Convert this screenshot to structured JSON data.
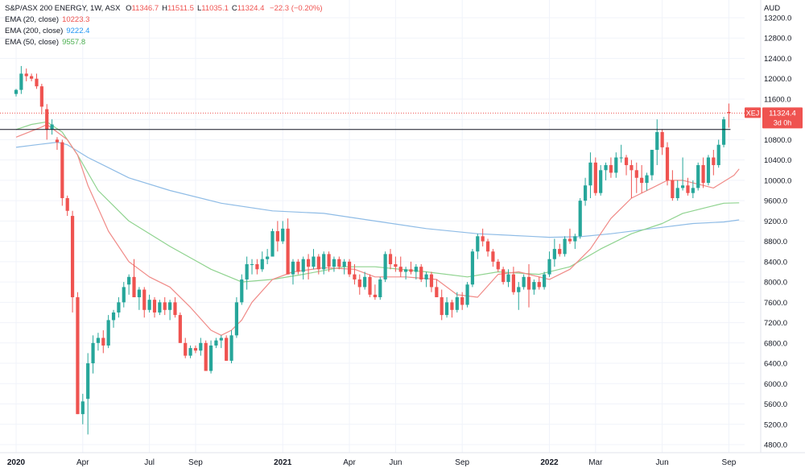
{
  "header": {
    "symbol_line": "S&P/ASX 200 ENERGY, 1W, ASX",
    "ohlc": [
      {
        "label": "O",
        "value": "11346.7"
      },
      {
        "label": "H",
        "value": "11511.5"
      },
      {
        "label": "L",
        "value": "11035.1"
      },
      {
        "label": "C",
        "value": "11324.4"
      }
    ],
    "change": "−22.3 (−0.20%)",
    "indicators": [
      {
        "label": "EMA (20, close)",
        "value": "10223.3",
        "color": "#ef5350"
      },
      {
        "label": "EMA (200, close)",
        "value": "9222.4",
        "color": "#2196f3"
      },
      {
        "label": "EMA (50, close)",
        "value": "9557.8",
        "color": "#4caf50"
      }
    ]
  },
  "colors": {
    "up": "#26a69a",
    "down": "#ef5350",
    "ema20": "#f08a87",
    "ema200": "#8fbce6",
    "ema50": "#8fd38f",
    "hline": "#131722",
    "price_line": "#ef5350"
  },
  "price_axis": {
    "currency": "AUD",
    "ticks": [
      "4800.0",
      "5200.0",
      "5600.0",
      "6000.0",
      "6400.0",
      "6800.0",
      "7200.0",
      "7600.0",
      "8000.0",
      "8400.0",
      "8800.0",
      "9200.0",
      "9600.0",
      "10000.0",
      "10400.0",
      "10800.0",
      "11200.0",
      "11600.0",
      "12000.0",
      "12400.0",
      "12800.0",
      "13200.0"
    ]
  },
  "time_axis": {
    "labels": [
      {
        "text": "2020",
        "bold": true,
        "week": 0
      },
      {
        "text": "Apr",
        "bold": false,
        "week": 13
      },
      {
        "text": "Jul",
        "bold": false,
        "week": 26
      },
      {
        "text": "Sep",
        "bold": false,
        "week": 35
      },
      {
        "text": "2021",
        "bold": true,
        "week": 52
      },
      {
        "text": "Apr",
        "bold": false,
        "week": 65
      },
      {
        "text": "Jun",
        "bold": false,
        "week": 74
      },
      {
        "text": "Sep",
        "bold": false,
        "week": 87
      },
      {
        "text": "2022",
        "bold": true,
        "week": 104
      },
      {
        "text": "Mar",
        "bold": false,
        "week": 113
      },
      {
        "text": "Jun",
        "bold": false,
        "week": 126
      },
      {
        "text": "Sep",
        "bold": false,
        "week": 139
      }
    ]
  },
  "badge": {
    "ticker": "XEJ",
    "price": "11324.4",
    "countdown": "3d 0h"
  },
  "chart_data": {
    "type": "candlestick",
    "title": "S&P/ASX 200 ENERGY, 1W, ASX",
    "ylabel": "AUD",
    "ylim": [
      4600,
      13300
    ],
    "xlim_weeks": [
      -3,
      143.5
    ],
    "start_date": "2019-12-30",
    "interval": "1W",
    "resistance_level": 11000,
    "last_price": 11324.4,
    "candles": [
      [
        11700,
        11800,
        11650,
        11780
      ],
      [
        11780,
        12250,
        11700,
        12100
      ],
      [
        12100,
        12200,
        11950,
        12050
      ],
      [
        12050,
        12100,
        11950,
        12000
      ],
      [
        12000,
        12100,
        11800,
        11850
      ],
      [
        11850,
        11900,
        11300,
        11450
      ],
      [
        11400,
        11500,
        10800,
        11000
      ],
      [
        11000,
        11200,
        10900,
        11100
      ],
      [
        10800,
        10850,
        10600,
        10750
      ],
      [
        10750,
        10800,
        9500,
        9650
      ],
      [
        9650,
        9700,
        9300,
        9400
      ],
      [
        9300,
        9400,
        7400,
        7700
      ],
      [
        7700,
        7800,
        5400,
        5400
      ],
      [
        5400,
        5800,
        5200,
        5650
      ],
      [
        5700,
        6600,
        5000,
        6400
      ],
      [
        6400,
        6950,
        6200,
        6800
      ],
      [
        6800,
        7000,
        6650,
        6900
      ],
      [
        6900,
        7050,
        6600,
        6750
      ],
      [
        6750,
        7350,
        6700,
        7250
      ],
      [
        7250,
        7450,
        7100,
        7400
      ],
      [
        7400,
        7700,
        7300,
        7600
      ],
      [
        7600,
        8000,
        7500,
        7900
      ],
      [
        7950,
        8150,
        7750,
        8100
      ],
      [
        8100,
        8450,
        7700,
        7700
      ],
      [
        7700,
        7900,
        7450,
        7850
      ],
      [
        7850,
        7900,
        7300,
        7450
      ],
      [
        7450,
        7750,
        7400,
        7650
      ],
      [
        7650,
        7700,
        7300,
        7400
      ],
      [
        7400,
        7650,
        7350,
        7600
      ],
      [
        7600,
        7700,
        7350,
        7450
      ],
      [
        7450,
        7650,
        7250,
        7600
      ],
      [
        7600,
        7700,
        7300,
        7350
      ],
      [
        7350,
        7400,
        6800,
        6800
      ],
      [
        6800,
        6900,
        6500,
        6550
      ],
      [
        6550,
        6750,
        6500,
        6700
      ],
      [
        6700,
        6750,
        6600,
        6650
      ],
      [
        6650,
        6900,
        6550,
        6800
      ],
      [
        6800,
        6850,
        6250,
        6250
      ],
      [
        6250,
        6850,
        6200,
        6750
      ],
      [
        6750,
        6900,
        6700,
        6850
      ],
      [
        6850,
        6950,
        6700,
        6900
      ],
      [
        6900,
        6950,
        6450,
        6450
      ],
      [
        6450,
        7050,
        6400,
        6950
      ],
      [
        6950,
        7700,
        6900,
        7600
      ],
      [
        7600,
        8150,
        7550,
        8050
      ],
      [
        8050,
        8500,
        7850,
        8350
      ],
      [
        8350,
        8450,
        8150,
        8350
      ],
      [
        8350,
        8450,
        8150,
        8250
      ],
      [
        8250,
        8600,
        8200,
        8450
      ],
      [
        8450,
        8650,
        8350,
        8500
      ],
      [
        8500,
        9050,
        8500,
        9000
      ],
      [
        9000,
        9200,
        8600,
        8800
      ],
      [
        8800,
        9200,
        8750,
        9050
      ],
      [
        9050,
        9250,
        8150,
        8150
      ],
      [
        8150,
        8450,
        7950,
        8400
      ],
      [
        8400,
        8450,
        8150,
        8200
      ],
      [
        8200,
        8500,
        8050,
        8450
      ],
      [
        8450,
        8550,
        8050,
        8300
      ],
      [
        8300,
        8650,
        8250,
        8500
      ],
      [
        8500,
        8550,
        8150,
        8250
      ],
      [
        8250,
        8600,
        8150,
        8550
      ],
      [
        8550,
        8600,
        8200,
        8300
      ],
      [
        8300,
        8500,
        8200,
        8450
      ],
      [
        8450,
        8500,
        8250,
        8300
      ],
      [
        8300,
        8450,
        8150,
        8400
      ],
      [
        8400,
        8450,
        8100,
        8150
      ],
      [
        8150,
        8350,
        7950,
        8050
      ],
      [
        8050,
        8150,
        7750,
        7900
      ],
      [
        7900,
        8200,
        7850,
        8100
      ],
      [
        8100,
        8150,
        7700,
        7750
      ],
      [
        7750,
        7950,
        7650,
        7700
      ],
      [
        7700,
        8100,
        7650,
        8050
      ],
      [
        8050,
        8600,
        8000,
        8550
      ],
      [
        8550,
        8650,
        8250,
        8350
      ],
      [
        8350,
        8500,
        8200,
        8300
      ],
      [
        8300,
        8500,
        8100,
        8200
      ],
      [
        8200,
        8300,
        8050,
        8250
      ],
      [
        8250,
        8400,
        8150,
        8200
      ],
      [
        8200,
        8350,
        8050,
        8300
      ],
      [
        8300,
        8350,
        8000,
        8050
      ],
      [
        8050,
        8200,
        7900,
        8150
      ],
      [
        8150,
        8200,
        7800,
        7900
      ],
      [
        7900,
        8050,
        7700,
        7700
      ],
      [
        7700,
        7850,
        7250,
        7350
      ],
      [
        7350,
        7700,
        7300,
        7600
      ],
      [
        7600,
        7650,
        7300,
        7450
      ],
      [
        7450,
        7800,
        7400,
        7700
      ],
      [
        7700,
        7800,
        7450,
        7550
      ],
      [
        7550,
        8000,
        7500,
        7950
      ],
      [
        7950,
        8650,
        7900,
        8600
      ],
      [
        8600,
        8950,
        8450,
        8900
      ],
      [
        8900,
        9050,
        8700,
        8800
      ],
      [
        8800,
        8850,
        8500,
        8600
      ],
      [
        8600,
        8650,
        8300,
        8400
      ],
      [
        8400,
        8450,
        8200,
        8250
      ],
      [
        8250,
        8300,
        7950,
        8000
      ],
      [
        8000,
        8250,
        7900,
        8150
      ],
      [
        8150,
        8300,
        7750,
        7800
      ],
      [
        7800,
        8000,
        7450,
        7900
      ],
      [
        7900,
        8150,
        7850,
        8100
      ],
      [
        8100,
        8350,
        7500,
        7850
      ],
      [
        7850,
        8050,
        7750,
        8000
      ],
      [
        8000,
        8100,
        7850,
        7900
      ],
      [
        7900,
        8200,
        7850,
        8150
      ],
      [
        8150,
        8600,
        8100,
        8450
      ],
      [
        8450,
        8850,
        8300,
        8650
      ],
      [
        8650,
        8750,
        8500,
        8550
      ],
      [
        8550,
        8900,
        8500,
        8850
      ],
      [
        8850,
        9050,
        8750,
        8800
      ],
      [
        8800,
        8950,
        8650,
        8900
      ],
      [
        8900,
        9650,
        8850,
        9600
      ],
      [
        9600,
        10050,
        9500,
        9900
      ],
      [
        9900,
        10550,
        9650,
        10350
      ],
      [
        10350,
        10450,
        9700,
        9750
      ],
      [
        9750,
        10300,
        9700,
        10200
      ],
      [
        10200,
        10350,
        10000,
        10300
      ],
      [
        10300,
        10450,
        10050,
        10150
      ],
      [
        10150,
        10550,
        10050,
        10450
      ],
      [
        10450,
        10700,
        10350,
        10450
      ],
      [
        10450,
        10500,
        10100,
        10300
      ],
      [
        10300,
        10400,
        9650,
        10200
      ],
      [
        10200,
        10350,
        9750,
        10050
      ],
      [
        10050,
        10300,
        9750,
        9950
      ],
      [
        9950,
        10150,
        9800,
        10100
      ],
      [
        10100,
        10600,
        10000,
        10600
      ],
      [
        10600,
        11200,
        10300,
        10950
      ],
      [
        10950,
        11000,
        10500,
        10650
      ],
      [
        10650,
        10750,
        9900,
        10000
      ],
      [
        10000,
        10200,
        9600,
        9650
      ],
      [
        9650,
        10000,
        9600,
        9850
      ],
      [
        9850,
        10450,
        9800,
        9900
      ],
      [
        9900,
        10050,
        9700,
        9750
      ],
      [
        9750,
        10000,
        9650,
        9850
      ],
      [
        9850,
        10350,
        9800,
        10300
      ],
      [
        10300,
        10450,
        9850,
        9950
      ],
      [
        9950,
        10500,
        9900,
        10450
      ],
      [
        10450,
        10600,
        10100,
        10300
      ],
      [
        10300,
        10800,
        10250,
        10700
      ],
      [
        10700,
        11250,
        10650,
        11200
      ],
      [
        11346.7,
        11511.5,
        11035.1,
        11324.4
      ]
    ],
    "ema20": [
      [
        0,
        10850
      ],
      [
        5,
        11050
      ],
      [
        6,
        11100
      ],
      [
        10,
        10800
      ],
      [
        12,
        10500
      ],
      [
        14,
        9900
      ],
      [
        18,
        9000
      ],
      [
        22,
        8400
      ],
      [
        26,
        8100
      ],
      [
        30,
        7900
      ],
      [
        34,
        7500
      ],
      [
        38,
        7050
      ],
      [
        40,
        6950
      ],
      [
        42,
        7050
      ],
      [
        44,
        7250
      ],
      [
        46,
        7600
      ],
      [
        50,
        8050
      ],
      [
        54,
        8200
      ],
      [
        60,
        8280
      ],
      [
        66,
        8250
      ],
      [
        70,
        8100
      ],
      [
        76,
        8100
      ],
      [
        82,
        8050
      ],
      [
        86,
        7750
      ],
      [
        90,
        7700
      ],
      [
        94,
        8150
      ],
      [
        98,
        8200
      ],
      [
        104,
        8050
      ],
      [
        108,
        8250
      ],
      [
        112,
        8650
      ],
      [
        116,
        9250
      ],
      [
        120,
        9650
      ],
      [
        124,
        9850
      ],
      [
        127,
        10000
      ],
      [
        130,
        10000
      ],
      [
        134,
        9900
      ],
      [
        136,
        9850
      ],
      [
        140,
        10100
      ],
      [
        141,
        10223
      ]
    ],
    "ema200": [
      [
        0,
        10650
      ],
      [
        4,
        10700
      ],
      [
        8,
        10750
      ],
      [
        10,
        10700
      ],
      [
        14,
        10450
      ],
      [
        22,
        10050
      ],
      [
        30,
        9800
      ],
      [
        40,
        9550
      ],
      [
        50,
        9400
      ],
      [
        60,
        9350
      ],
      [
        70,
        9200
      ],
      [
        80,
        9050
      ],
      [
        90,
        8950
      ],
      [
        100,
        8900
      ],
      [
        104,
        8880
      ],
      [
        110,
        8890
      ],
      [
        116,
        8950
      ],
      [
        124,
        9050
      ],
      [
        132,
        9150
      ],
      [
        138,
        9180
      ],
      [
        141,
        9222
      ]
    ],
    "ema50": [
      [
        0,
        11000
      ],
      [
        3,
        11100
      ],
      [
        6,
        11150
      ],
      [
        9,
        10950
      ],
      [
        12,
        10500
      ],
      [
        16,
        9800
      ],
      [
        22,
        9200
      ],
      [
        30,
        8700
      ],
      [
        38,
        8250
      ],
      [
        44,
        8000
      ],
      [
        50,
        8050
      ],
      [
        56,
        8150
      ],
      [
        64,
        8300
      ],
      [
        70,
        8300
      ],
      [
        80,
        8200
      ],
      [
        88,
        8100
      ],
      [
        94,
        8200
      ],
      [
        102,
        8150
      ],
      [
        108,
        8300
      ],
      [
        114,
        8650
      ],
      [
        120,
        8950
      ],
      [
        126,
        9150
      ],
      [
        130,
        9350
      ],
      [
        134,
        9450
      ],
      [
        138,
        9550
      ],
      [
        141,
        9558
      ]
    ]
  }
}
